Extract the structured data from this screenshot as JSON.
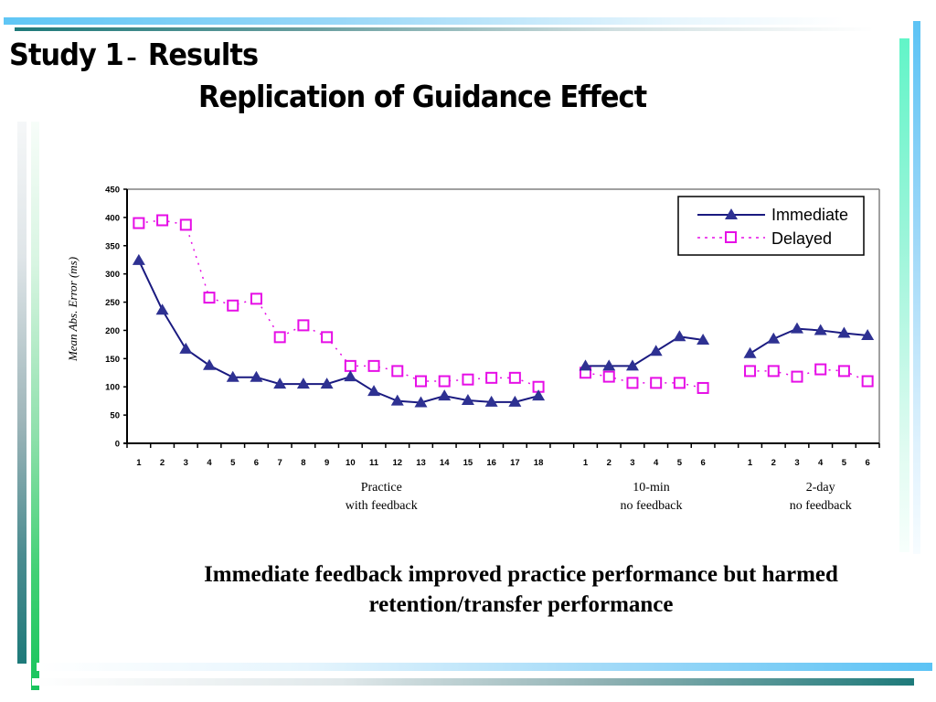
{
  "slide": {
    "title_part1": "Study 1",
    "title_dash": "–",
    "title_part2": "Results",
    "subtitle": "Replication of Guidance Effect",
    "caption": "Immediate feedback improved practice performance but harmed retention/transfer performance"
  },
  "colors": {
    "immediate": "#1a1a80",
    "delayed": "#e60ee6",
    "text": "#000000"
  },
  "chart_data": {
    "type": "line",
    "title": "",
    "xlabel": "",
    "ylabel": "Mean Abs. Error (ms)",
    "ylim": [
      0,
      450
    ],
    "yticks": [
      0,
      50,
      100,
      150,
      200,
      250,
      300,
      350,
      400,
      450
    ],
    "grid": false,
    "legend_position": "top-right",
    "groups": [
      {
        "name": "practice",
        "label_line1": "Practice",
        "label_line2": "with feedback",
        "categories": [
          "1",
          "2",
          "3",
          "4",
          "5",
          "6",
          "7",
          "8",
          "9",
          "10",
          "11",
          "12",
          "13",
          "14",
          "15",
          "16",
          "17",
          "18"
        ]
      },
      {
        "name": "ten-min",
        "label_line1": "10-min",
        "label_line2": "no feedback",
        "categories": [
          "1",
          "2",
          "3",
          "4",
          "5",
          "6"
        ]
      },
      {
        "name": "two-day",
        "label_line1": "2-day",
        "label_line2": "no feedback",
        "categories": [
          "1",
          "2",
          "3",
          "4",
          "5",
          "6"
        ]
      }
    ],
    "series": [
      {
        "name": "Immediate",
        "marker": "triangle",
        "line": "solid",
        "values": [
          [
            324,
            236,
            167,
            138,
            117,
            117,
            105,
            105,
            105,
            118,
            92,
            75,
            72,
            84,
            76,
            73,
            73,
            84
          ],
          [
            137,
            137,
            137,
            163,
            189,
            183
          ],
          [
            159,
            185,
            203,
            200,
            195,
            191
          ]
        ]
      },
      {
        "name": "Delayed",
        "marker": "square-open",
        "line": "dotted",
        "values": [
          [
            390,
            395,
            387,
            258,
            244,
            256,
            188,
            209,
            188,
            137,
            137,
            128,
            110,
            110,
            113,
            116,
            116,
            100
          ],
          [
            125,
            118,
            107,
            107,
            107,
            98
          ],
          [
            128,
            128,
            118,
            131,
            128,
            110
          ]
        ]
      }
    ]
  }
}
